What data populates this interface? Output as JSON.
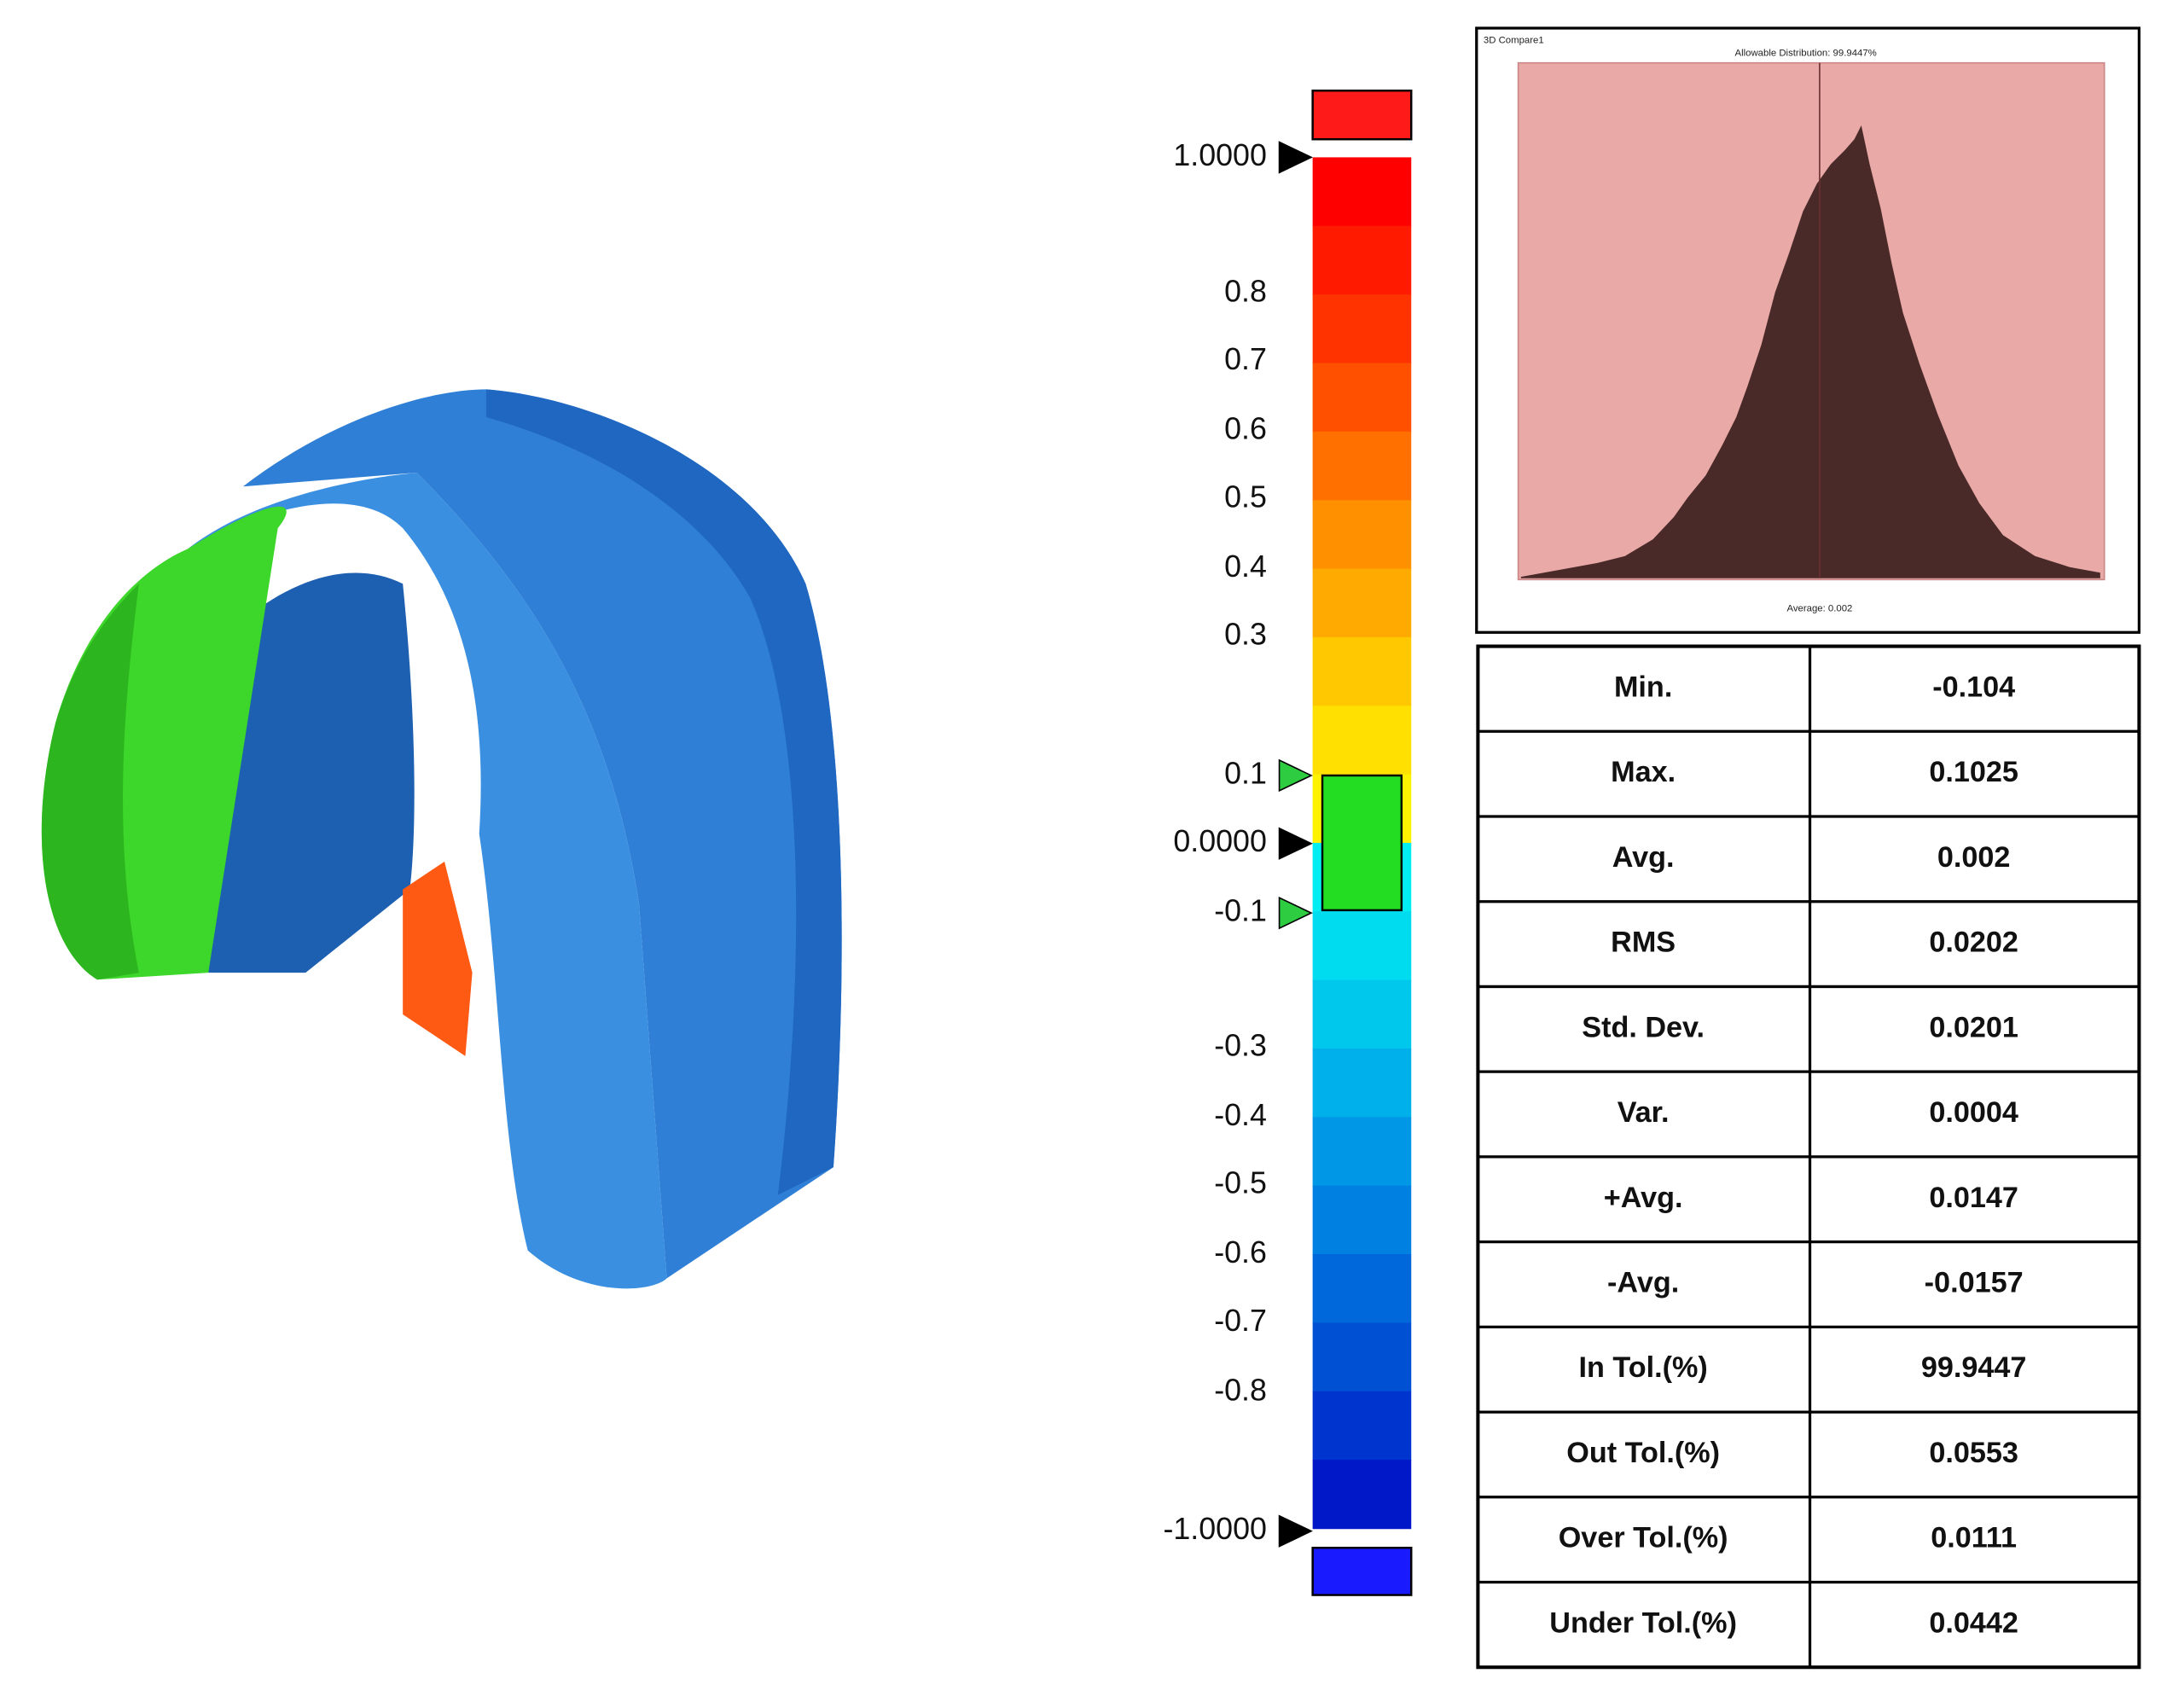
{
  "colorbar": {
    "labels": [
      "1.0000",
      "0.8",
      "0.7",
      "0.6",
      "0.5",
      "0.4",
      "0.3",
      "0.1",
      "0.0000",
      "-0.1",
      "-0.3",
      "-0.4",
      "-0.5",
      "-0.6",
      "-0.7",
      "-0.8",
      "-1.0000"
    ]
  },
  "histogram": {
    "title": "3D Compare1",
    "subtitle": "Allowable Distribution: 99.9447%",
    "footer": "Average: 0.002"
  },
  "table": {
    "rows": [
      [
        "Min.",
        "-0.104"
      ],
      [
        "Max.",
        "0.1025"
      ],
      [
        "Avg.",
        "0.002"
      ],
      [
        "RMS",
        "0.0202"
      ],
      [
        "Std. Dev.",
        "0.0201"
      ],
      [
        "Var.",
        "0.0004"
      ],
      [
        "+Avg.",
        "0.0147"
      ],
      [
        "-Avg.",
        "-0.0157"
      ],
      [
        "In Tol.(%)",
        "99.9447"
      ],
      [
        "Out Tol.(%)",
        "0.0553"
      ],
      [
        "Over Tol.(%)",
        "0.0111"
      ],
      [
        "Under Tol.(%)",
        "0.0442"
      ]
    ]
  }
}
